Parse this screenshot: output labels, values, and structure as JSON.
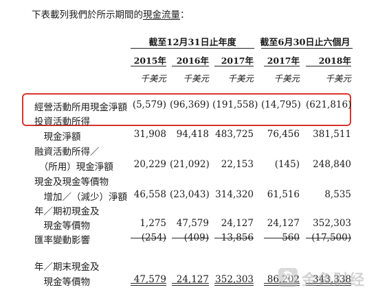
{
  "intro": {
    "prefix": "下表載列我們於所示期間的",
    "underlined": "現金流量",
    "suffix": "："
  },
  "group_headers": [
    "截至12月31日止年度",
    "截至6月30日止六個月"
  ],
  "years": [
    "2015年",
    "2016年",
    "2017年",
    "2017年",
    "2018年"
  ],
  "unit": "千美元",
  "rows": [
    {
      "label": "經營活動所用現金淨額",
      "values": [
        "(5,579)",
        "(96,369)",
        "(191,558)",
        "(14,795)",
        "(621,816)"
      ]
    },
    {
      "label": "投資活動所得",
      "values": [
        "",
        "",
        "",
        "",
        ""
      ]
    },
    {
      "label": "　現金淨額",
      "values": [
        "31,908",
        "94,418",
        "483,725",
        "76,456",
        "381,511"
      ]
    },
    {
      "label": "融資活動所得／",
      "values": [
        "",
        "",
        "",
        "",
        ""
      ]
    },
    {
      "label": "　（所用）現金淨額",
      "values": [
        "20,229",
        "(21,092)",
        "22,153",
        "(145)",
        "248,840"
      ]
    },
    {
      "label": "現金及現金等價物",
      "values": [
        "",
        "",
        "",
        "",
        ""
      ]
    },
    {
      "label": "　增加／（減少）淨額",
      "values": [
        "46,558",
        "(23,043)",
        "314,320",
        "61,516",
        "8,535"
      ]
    },
    {
      "label": "年／期初現金及",
      "values": [
        "",
        "",
        "",
        "",
        ""
      ]
    },
    {
      "label": "　現金等價物",
      "values": [
        "1,275",
        "47,579",
        "24,127",
        "24,127",
        "352,303"
      ]
    },
    {
      "label": "匯率變動影響",
      "values": [
        "(254)",
        "(409)",
        "13,856",
        "560",
        "(17,500)"
      ]
    },
    {
      "label": "年／期末現金及",
      "values": [
        "",
        "",
        "",
        "",
        ""
      ]
    },
    {
      "label": "　現金等價物",
      "values": [
        "47,579",
        "24,127",
        "352,303",
        "86,202",
        "343,338"
      ]
    }
  ],
  "watermark": {
    "text": "金色财经",
    "icon": "golden-logo-icon"
  }
}
